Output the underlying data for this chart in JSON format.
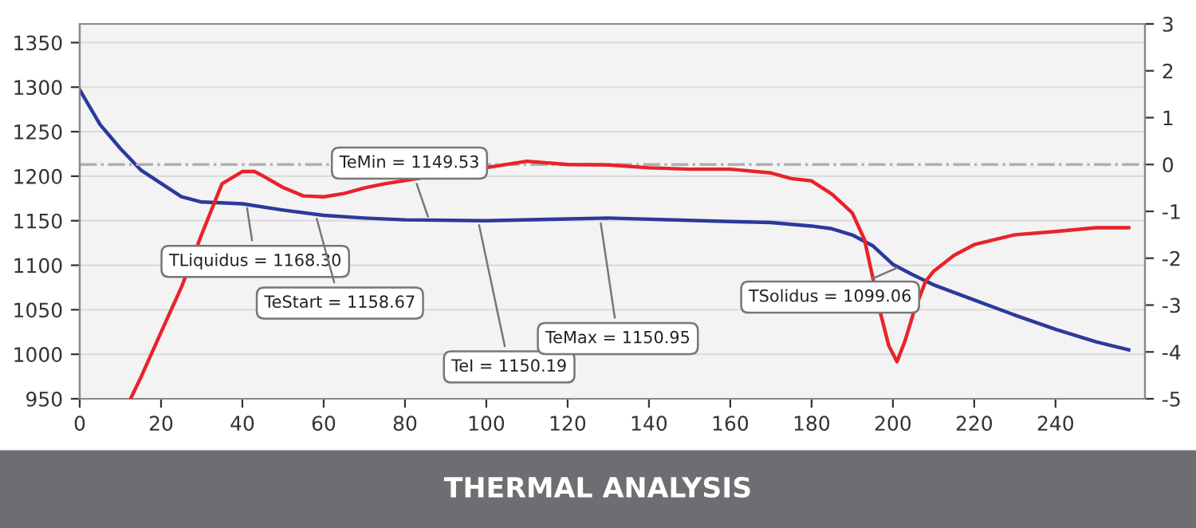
{
  "chart_data": {
    "type": "line",
    "title": "THERMAL ANALYSIS",
    "xlim": [
      0,
      262
    ],
    "xticks": [
      0,
      20,
      40,
      60,
      80,
      100,
      120,
      140,
      160,
      180,
      200,
      220,
      240
    ],
    "ylim": [
      950,
      1371
    ],
    "yticks": [
      950,
      1000,
      1050,
      1100,
      1150,
      1200,
      1250,
      1300,
      1350
    ],
    "y2lim": [
      -5,
      3
    ],
    "y2ticks": [
      -5,
      -4,
      -3,
      -2,
      -1,
      0,
      1,
      2,
      3
    ],
    "grid": "y",
    "marker": "none",
    "line_style": "solid",
    "series": [
      {
        "color": "#2b3a9a",
        "x": [
          0,
          5,
          10,
          15,
          20,
          25,
          30,
          40,
          50,
          60,
          70,
          80,
          100,
          120,
          130,
          160,
          170,
          180,
          185,
          190,
          195,
          200,
          205,
          210,
          220,
          230,
          240,
          250,
          258
        ],
        "values": [
          1297,
          1258,
          1231,
          1207,
          1192,
          1177,
          1171,
          1169,
          1162,
          1156,
          1153,
          1151,
          1150,
          1152,
          1153,
          1149,
          1148,
          1144,
          1141,
          1134,
          1122,
          1101,
          1089,
          1078,
          1061,
          1044,
          1028,
          1014,
          1005
        ]
      },
      {
        "color": "#e8232a",
        "axis": "y2",
        "x": [
          12.5,
          15,
          20,
          25,
          30,
          35,
          40,
          43,
          45,
          50,
          55,
          60,
          65,
          70,
          75,
          110,
          120,
          130,
          140,
          150,
          160,
          170,
          175,
          180,
          185,
          190,
          193,
          195,
          197,
          199,
          201,
          203,
          205,
          208,
          210,
          215,
          220,
          230,
          240,
          250,
          258
        ],
        "values": [
          -5,
          -4.55,
          -3.58,
          -2.62,
          -1.49,
          -0.41,
          -0.15,
          -0.15,
          -0.24,
          -0.49,
          -0.67,
          -0.69,
          -0.62,
          -0.5,
          -0.41,
          0.07,
          0.0,
          -0.01,
          -0.07,
          -0.1,
          -0.1,
          -0.18,
          -0.3,
          -0.35,
          -0.63,
          -1.03,
          -1.6,
          -2.39,
          -3.19,
          -3.87,
          -4.21,
          -3.76,
          -3.19,
          -2.5,
          -2.28,
          -1.94,
          -1.71,
          -1.5,
          -1.43,
          -1.35,
          -1.35
        ]
      }
    ],
    "ref_lines": [
      {
        "axis": "y2",
        "value": 0,
        "color": "#b0b0b0",
        "line_style": "dashdot"
      }
    ],
    "annotations": [
      {
        "text": "TLiquidus = 1168.30",
        "x": 41,
        "y": 1169
      },
      {
        "text": "TeStart = 1158.67",
        "x": 58,
        "y": 1157
      },
      {
        "text": "TeMin = 1149.53",
        "x": 86,
        "y": 1150
      },
      {
        "text": "TeI = 1150.19",
        "x": 98,
        "y": 1150
      },
      {
        "text": "TeMax = 1150.95",
        "x": 128,
        "y": 1152
      },
      {
        "text": "TSolidus = 1099.06",
        "x": 202,
        "y": 1099
      }
    ]
  }
}
